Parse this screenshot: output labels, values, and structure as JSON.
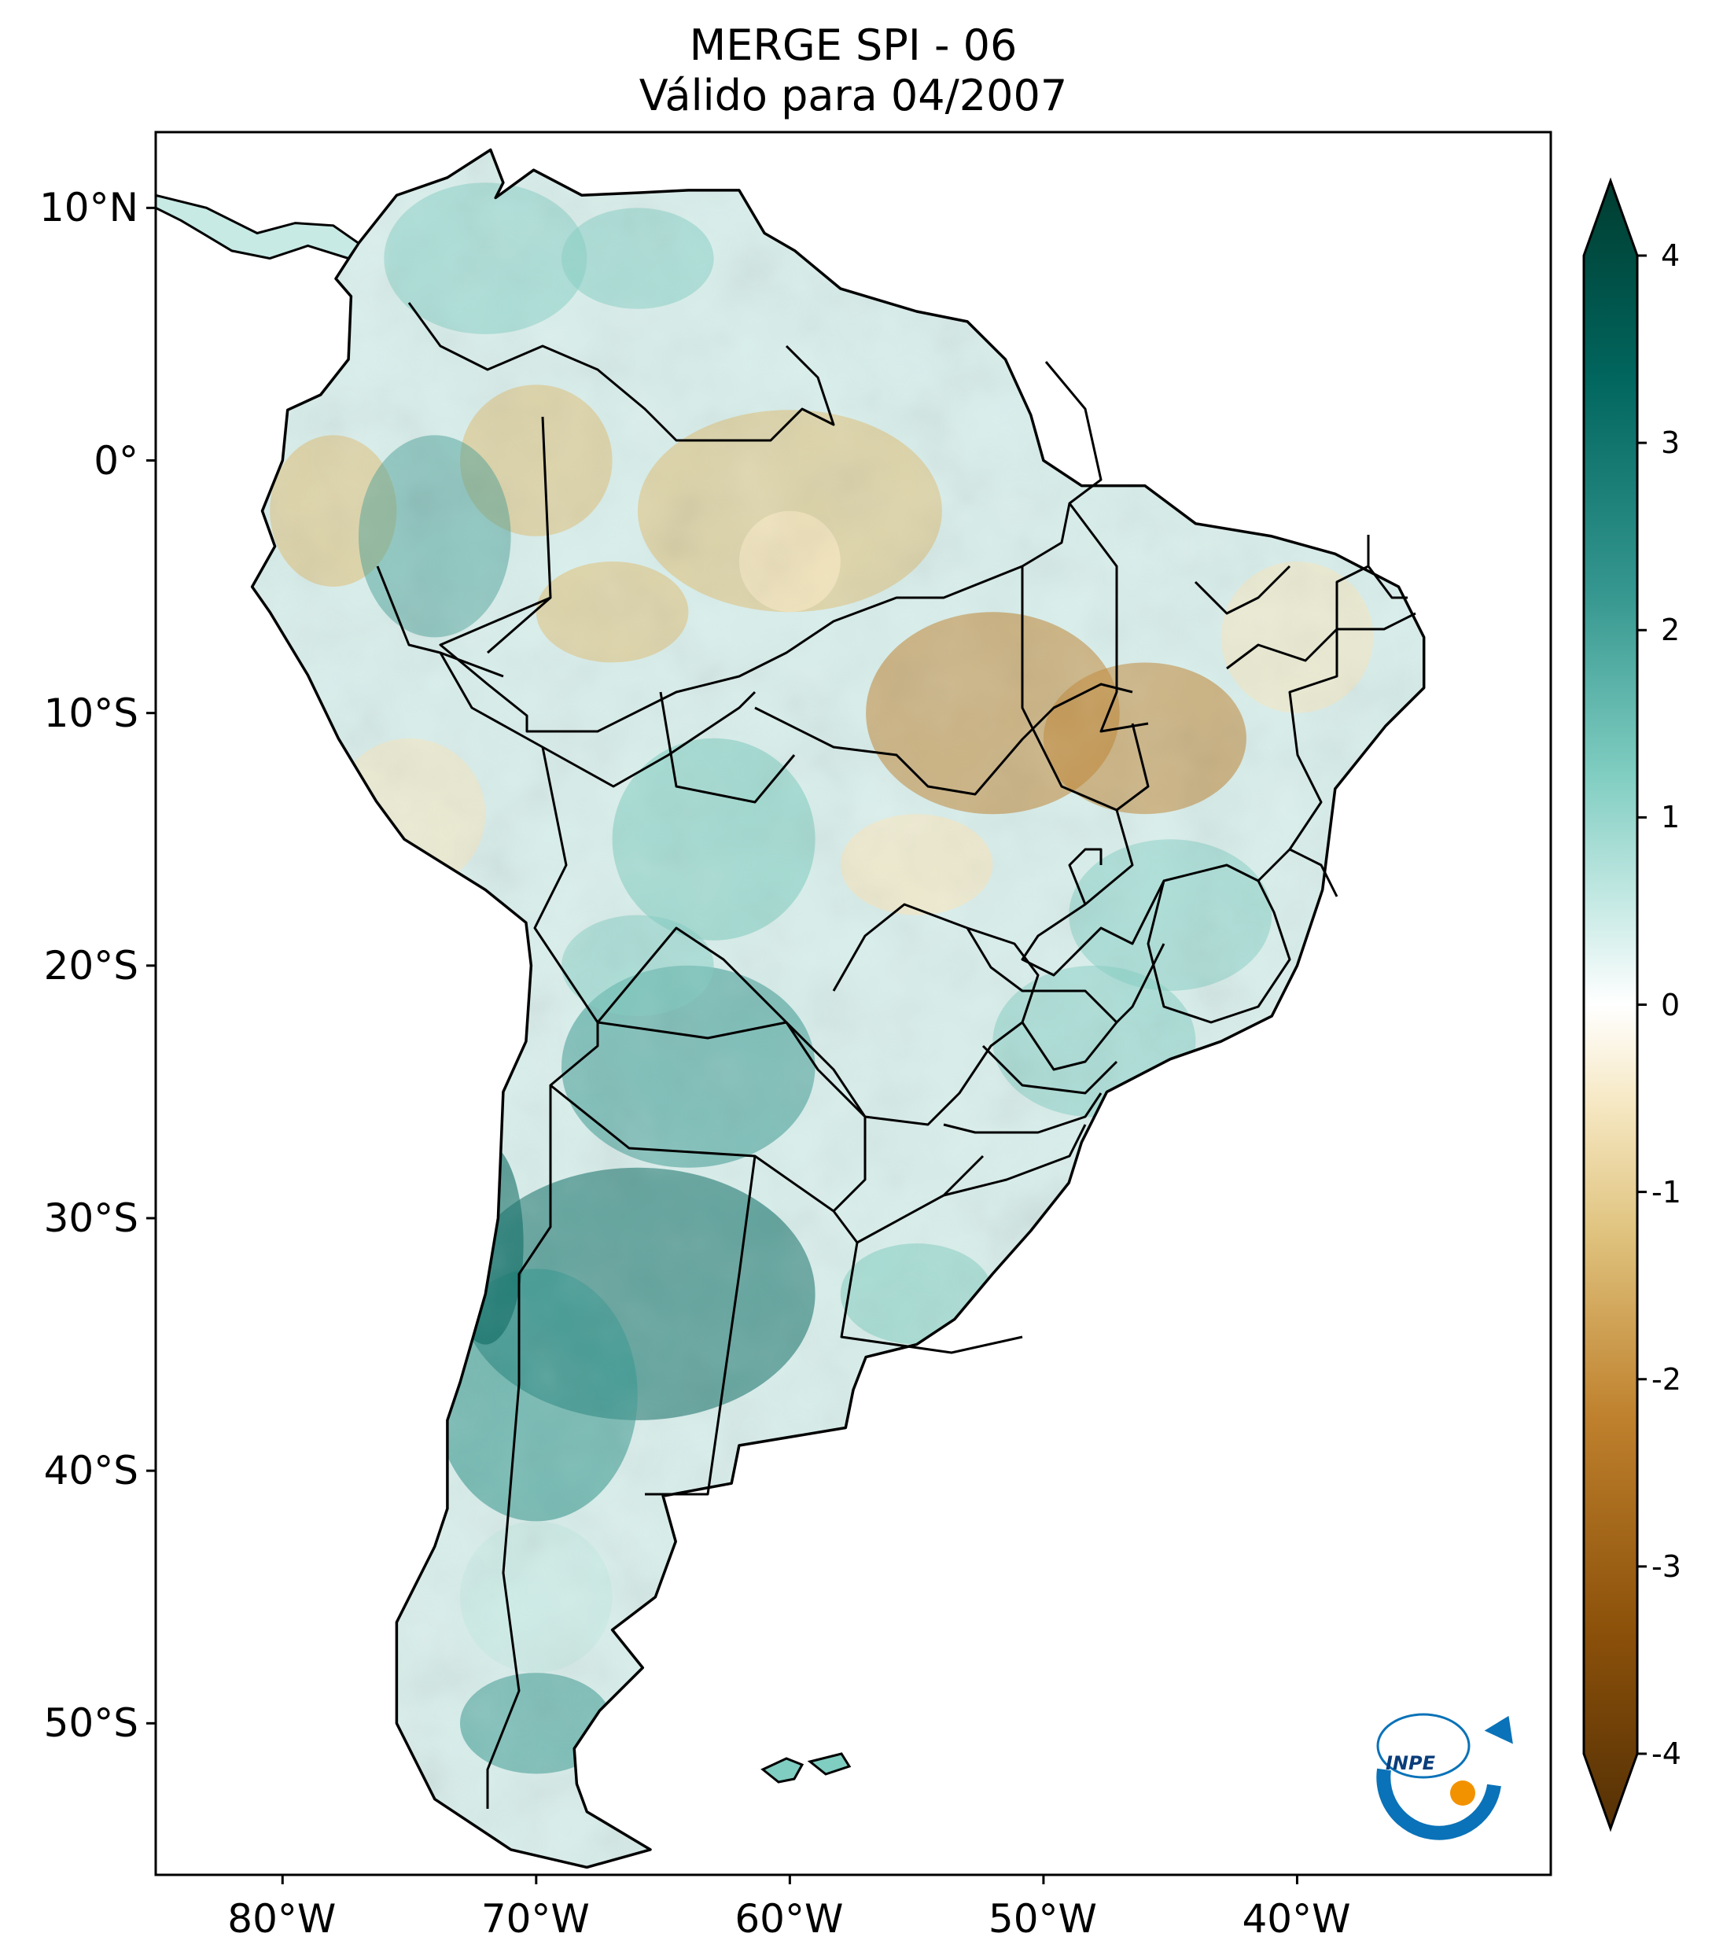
{
  "title": {
    "line1": "MERGE   SPI - 06",
    "line2": "Válido para 04/2007"
  },
  "map": {
    "lon_range": [
      -85,
      -30
    ],
    "lat_range": [
      -56,
      13
    ],
    "lon_ticks": [
      {
        "value": -80,
        "label": "80°W"
      },
      {
        "value": -70,
        "label": "70°W"
      },
      {
        "value": -60,
        "label": "60°W"
      },
      {
        "value": -50,
        "label": "50°W"
      },
      {
        "value": -40,
        "label": "40°W"
      }
    ],
    "lat_ticks": [
      {
        "value": 10,
        "label": "10°N"
      },
      {
        "value": 0,
        "label": "0°"
      },
      {
        "value": -10,
        "label": "10°S"
      },
      {
        "value": -20,
        "label": "20°S"
      },
      {
        "value": -30,
        "label": "30°S"
      },
      {
        "value": -40,
        "label": "40°S"
      },
      {
        "value": -50,
        "label": "50°S"
      }
    ]
  },
  "colorbar": {
    "min": -4,
    "max": 4,
    "ticks": [
      "-4",
      "-3",
      "-2",
      "-1",
      "0",
      "1",
      "2",
      "3",
      "4"
    ],
    "colors": [
      "#543005",
      "#8c510a",
      "#bf812d",
      "#dfc27d",
      "#f6e8c3",
      "#ffffff",
      "#c7eae5",
      "#80cdc1",
      "#35978f",
      "#01665e",
      "#003c30"
    ]
  },
  "logo": {
    "text": "INPE",
    "accent": "#f39200",
    "arrow": "#0a72b8"
  }
}
